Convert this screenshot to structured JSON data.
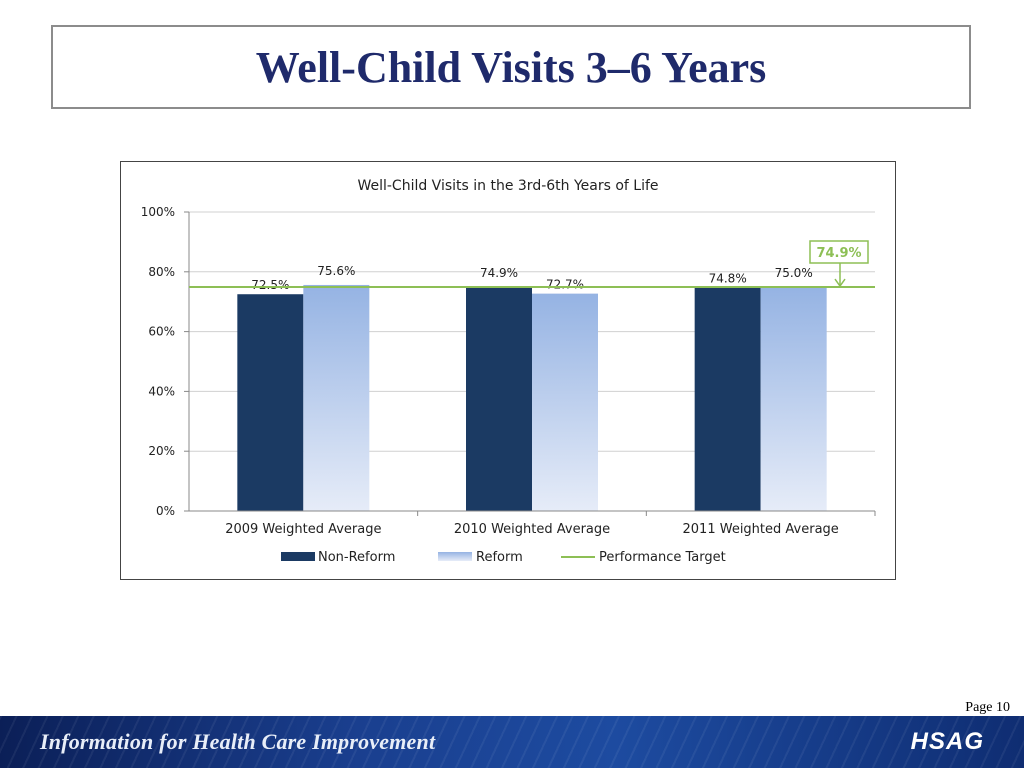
{
  "slide": {
    "title": "Well-Child Visits 3–6 Years",
    "page": "Page 10",
    "footer_tagline": "Information for Health Care Improvement",
    "logo_text": "HSAG"
  },
  "colors": {
    "non_reform": "#1b3a63",
    "reform_top": "#95b3e3",
    "reform_bottom": "#e6ecf8",
    "target": "#8dbf55",
    "title_blue": "#1f2a6b"
  },
  "chart_data": {
    "type": "bar",
    "title": "Well-Child Visits in the 3rd-6th Years of Life",
    "categories": [
      "2009 Weighted Average",
      "2010 Weighted Average",
      "2011 Weighted Average"
    ],
    "series": [
      {
        "name": "Non-Reform",
        "values": [
          72.5,
          74.9,
          74.8
        ],
        "labels": [
          "72.5%",
          "74.9%",
          "74.8%"
        ]
      },
      {
        "name": "Reform",
        "values": [
          75.6,
          72.7,
          75.0
        ],
        "labels": [
          "75.6%",
          "72.7%",
          "75.0%"
        ]
      }
    ],
    "target": {
      "name": "Performance Target",
      "value": 74.9,
      "label": "74.9%"
    },
    "ylim": [
      0,
      100
    ],
    "yticks": [
      {
        "value": 0,
        "label": "0%"
      },
      {
        "value": 20,
        "label": "20%"
      },
      {
        "value": 40,
        "label": "40%"
      },
      {
        "value": 60,
        "label": "60%"
      },
      {
        "value": 80,
        "label": "80%"
      },
      {
        "value": 100,
        "label": "100%"
      }
    ],
    "grid": true,
    "legend_position": "bottom"
  }
}
